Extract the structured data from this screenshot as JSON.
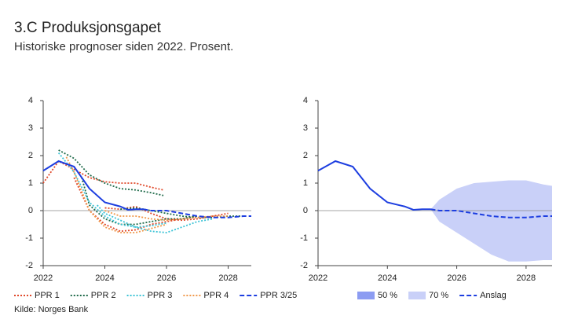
{
  "title": "3.C Produksjonsgapet",
  "subtitle": "Historiske prognoser siden 2022. Prosent.",
  "source": "Kilde: Norges Bank",
  "chart_data": [
    {
      "type": "line",
      "xlim": [
        2022,
        2028.75
      ],
      "xticks": [
        2022,
        2024,
        2026,
        2028
      ],
      "ylim": [
        -2,
        4
      ],
      "yticks": [
        -2,
        -1,
        0,
        1,
        2,
        3,
        4
      ],
      "series": [
        {
          "name": "PPR 1",
          "color": "#e0492b",
          "dash": "dotted",
          "x": [
            2022,
            2022.5,
            2023,
            2023.5,
            2024,
            2024.5,
            2025,
            2025.5,
            2025.9
          ],
          "values": [
            1.0,
            1.8,
            1.5,
            1.2,
            1.05,
            1.0,
            1.0,
            0.85,
            0.75
          ]
        },
        {
          "name": "PPR 1",
          "color": "#e0492b",
          "dash": "dotted",
          "x": [
            2023,
            2023.5,
            2024,
            2024.5,
            2025,
            2025.5,
            2026,
            2026.5,
            2027
          ],
          "values": [
            1.2,
            0.0,
            -0.5,
            -0.75,
            -0.7,
            -0.5,
            -0.4,
            -0.3,
            -0.2
          ]
        },
        {
          "name": "PPR 1",
          "color": "#e0492b",
          "dash": "dotted",
          "x": [
            2024,
            2024.5,
            2025,
            2025.5,
            2026,
            2026.5,
            2027,
            2027.5,
            2028
          ],
          "values": [
            0.1,
            0.05,
            0.15,
            -0.1,
            -0.3,
            -0.35,
            -0.3,
            -0.2,
            -0.1
          ]
        },
        {
          "name": "PPR 2",
          "color": "#1f6b4a",
          "dash": "dotted",
          "x": [
            2022.5,
            2023,
            2023.5,
            2024,
            2024.5,
            2025,
            2025.5,
            2025.9
          ],
          "values": [
            2.2,
            1.9,
            1.3,
            1.0,
            0.8,
            0.75,
            0.65,
            0.55
          ]
        },
        {
          "name": "PPR 2",
          "color": "#1f6b4a",
          "dash": "dotted",
          "x": [
            2023.25,
            2023.5,
            2024,
            2024.5,
            2025,
            2025.5,
            2026,
            2026.5,
            2027
          ],
          "values": [
            1.2,
            0.2,
            -0.3,
            -0.5,
            -0.5,
            -0.4,
            -0.3,
            -0.3,
            -0.2
          ]
        },
        {
          "name": "PPR 2",
          "color": "#1f6b4a",
          "dash": "dotted",
          "x": [
            2024.5,
            2025,
            2025.5,
            2026,
            2026.5,
            2027,
            2027.5,
            2028,
            2028.5
          ],
          "values": [
            0.05,
            0.1,
            0.0,
            -0.1,
            -0.2,
            -0.25,
            -0.25,
            -0.2,
            -0.2
          ]
        },
        {
          "name": "PPR 3",
          "color": "#3cc3d6",
          "dash": "dotted",
          "x": [
            2022.5,
            2023,
            2023.5,
            2024,
            2024.5,
            2025,
            2025.5,
            2026
          ],
          "values": [
            2.1,
            1.4,
            0.3,
            -0.2,
            -0.5,
            -0.6,
            -0.55,
            -0.45
          ]
        },
        {
          "name": "PPR 3",
          "color": "#3cc3d6",
          "dash": "dotted",
          "x": [
            2023.75,
            2024,
            2024.5,
            2025,
            2025.5,
            2026,
            2026.5,
            2027,
            2027.5
          ],
          "values": [
            0.2,
            -0.1,
            -0.35,
            -0.6,
            -0.75,
            -0.8,
            -0.6,
            -0.4,
            -0.3
          ]
        },
        {
          "name": "PPR 4",
          "color": "#f0984a",
          "dash": "dotted",
          "x": [
            2022.75,
            2023,
            2023.5,
            2024,
            2024.5,
            2025,
            2025.5,
            2026
          ],
          "values": [
            1.95,
            1.4,
            0.0,
            -0.6,
            -0.8,
            -0.8,
            -0.65,
            -0.5
          ]
        },
        {
          "name": "PPR 4",
          "color": "#f0984a",
          "dash": "dotted",
          "x": [
            2024,
            2024.5,
            2025,
            2025.5,
            2026,
            2026.5,
            2027,
            2027.5,
            2028
          ],
          "values": [
            0.0,
            -0.2,
            -0.2,
            -0.3,
            -0.35,
            -0.3,
            -0.25,
            -0.2,
            -0.2
          ]
        },
        {
          "color": "#1d3ee0",
          "dash": "solid",
          "x": [
            2022,
            2022.5,
            2023,
            2023.5,
            2024,
            2024.5,
            2024.75,
            2025,
            2025.25
          ],
          "values": [
            1.45,
            1.8,
            1.6,
            0.8,
            0.3,
            0.15,
            0.03,
            0.05,
            0.05
          ]
        },
        {
          "name": "PPR 3/25",
          "color": "#1d3ee0",
          "dash": "dashed",
          "x": [
            2025.25,
            2025.5,
            2026,
            2026.5,
            2027,
            2027.5,
            2028,
            2028.5,
            2028.75
          ],
          "values": [
            0.05,
            0.0,
            0.0,
            -0.1,
            -0.2,
            -0.25,
            -0.25,
            -0.2,
            -0.2
          ]
        }
      ]
    },
    {
      "type": "line",
      "xlim": [
        2022,
        2028.75
      ],
      "xticks": [
        2022,
        2024,
        2026,
        2028
      ],
      "ylim": [
        -2,
        4
      ],
      "yticks": [
        -2,
        -1,
        0,
        1,
        2,
        3,
        4
      ],
      "series": [
        {
          "name": "50 %",
          "kind": "band",
          "color": "#8c9cf2",
          "x": [
            2025.25,
            2025.5,
            2026,
            2026.5,
            2027,
            2027.5,
            2028,
            2028.5,
            2028.75
          ],
          "upper": [
            0.05,
            0.25,
            0.5,
            0.65,
            0.7,
            0.65,
            0.55,
            0.4,
            0.25
          ],
          "lower": [
            0.05,
            -0.25,
            -0.5,
            -0.8,
            -1.05,
            -1.2,
            -1.35,
            -1.4,
            -1.45
          ]
        },
        {
          "name": "70 %",
          "kind": "band",
          "color": "#c9d0f8",
          "x": [
            2025.25,
            2025.5,
            2026,
            2026.5,
            2027,
            2027.5,
            2028,
            2028.5,
            2028.75
          ],
          "upper": [
            0.05,
            0.4,
            0.8,
            1.0,
            1.05,
            1.1,
            1.1,
            0.95,
            0.9
          ],
          "lower": [
            0.05,
            -0.4,
            -0.8,
            -1.2,
            -1.6,
            -1.85,
            -1.85,
            -1.8,
            -1.8
          ]
        },
        {
          "kind": "line",
          "color": "#1d3ee0",
          "dash": "solid",
          "x": [
            2022,
            2022.5,
            2023,
            2023.5,
            2024,
            2024.5,
            2024.75,
            2025,
            2025.25
          ],
          "values": [
            1.45,
            1.8,
            1.6,
            0.8,
            0.3,
            0.15,
            0.03,
            0.05,
            0.05
          ]
        },
        {
          "name": "Anslag",
          "kind": "line",
          "color": "#1d3ee0",
          "dash": "dashed",
          "x": [
            2025.25,
            2025.5,
            2026,
            2026.5,
            2027,
            2027.5,
            2028,
            2028.5,
            2028.75
          ],
          "values": [
            0.05,
            0.0,
            0.0,
            -0.1,
            -0.2,
            -0.25,
            -0.25,
            -0.2,
            -0.2
          ]
        }
      ]
    }
  ]
}
